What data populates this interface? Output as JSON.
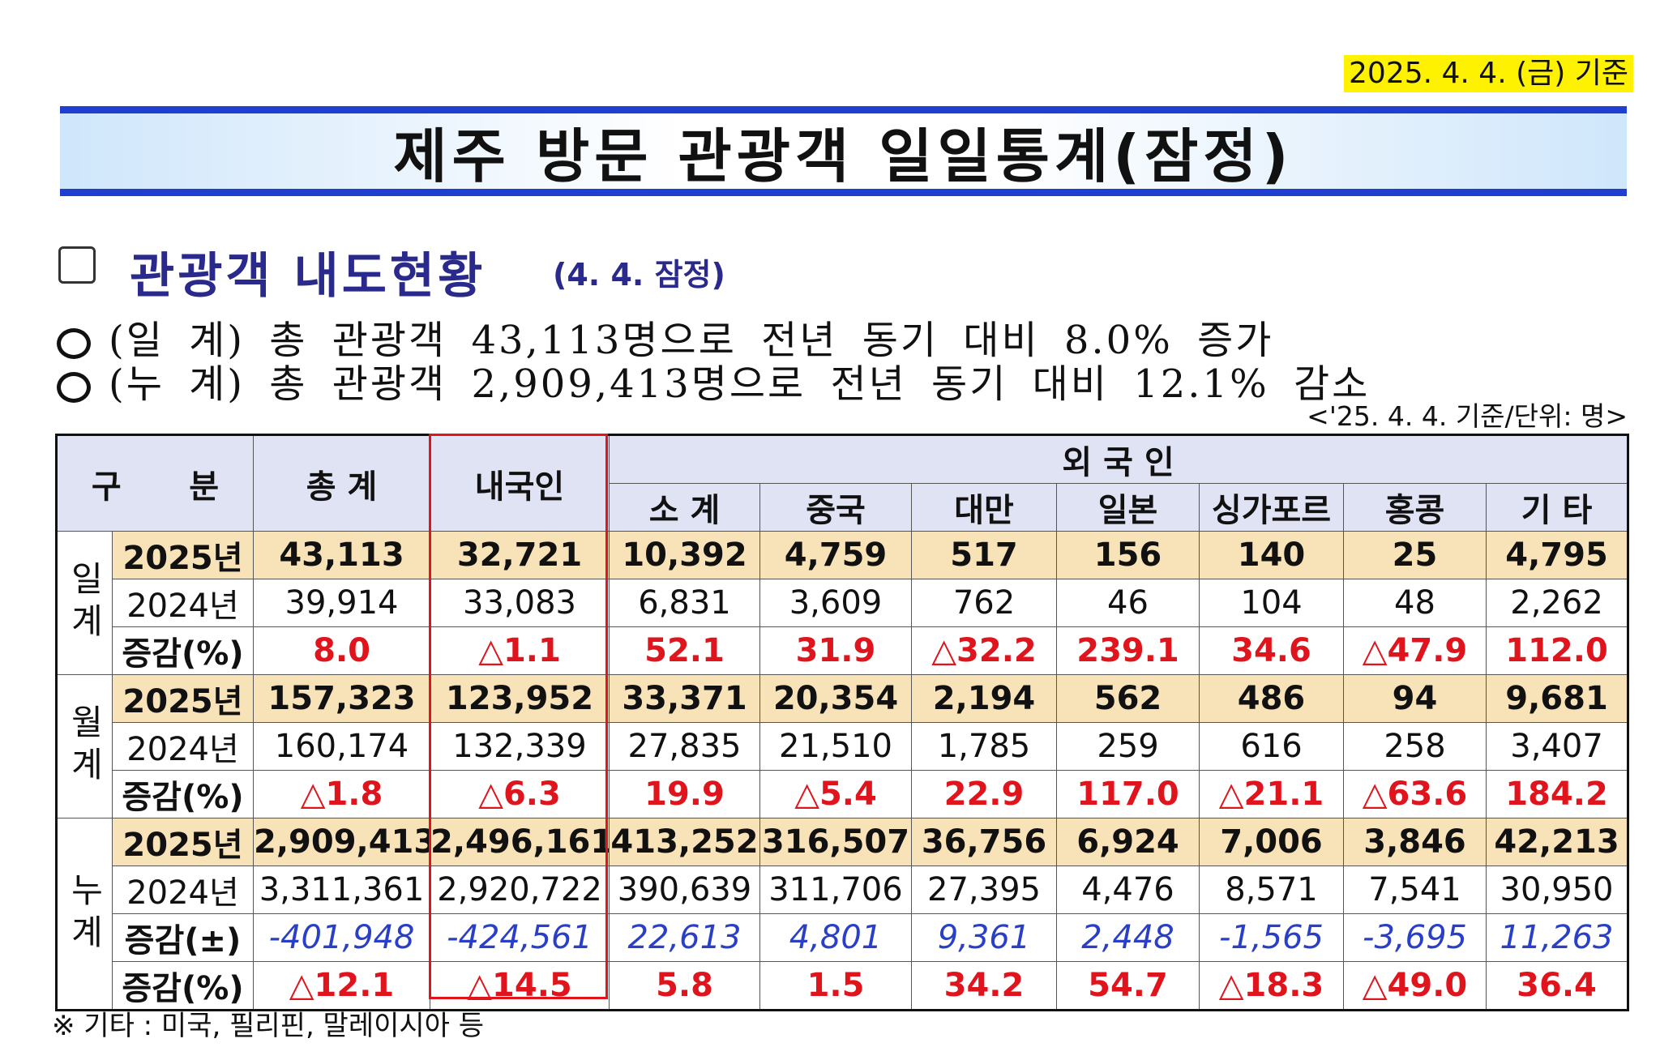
{
  "date_label": "2025. 4. 4. (금) 기준",
  "title": "제주 방문 관광객 일일통계(잠정)",
  "section": {
    "heading": "관광객 내도현황",
    "sub": "(4. 4. 잠정)"
  },
  "bullets": [
    "(일 계) 총 관광객 43,113명으로 전년 동기 대비 8.0% 증가",
    "(누 계) 총 관광객 2,909,413명으로 전년 동기 대비 12.1% 감소"
  ],
  "unit_note": "<'25. 4. 4. 기준/단위: 명>",
  "table": {
    "corner": "구      분",
    "total": "총 계",
    "domestic": "내국인",
    "foreign": "외 국 인",
    "foreign_columns": [
      "소 계",
      "중국",
      "대만",
      "일본",
      "싱가포르",
      "홍콩",
      "기 타"
    ],
    "groups": [
      {
        "name": "일계",
        "rows": [
          {
            "label": "2025년",
            "values": [
              "43,113",
              "32,721",
              "10,392",
              "4,759",
              "517",
              "156",
              "140",
              "25",
              "4,795"
            ]
          },
          {
            "label": "2024년",
            "values": [
              "39,914",
              "33,083",
              "6,831",
              "3,609",
              "762",
              "46",
              "104",
              "48",
              "2,262"
            ]
          },
          {
            "label": "증감(%)",
            "values": [
              "8.0",
              "△1.1",
              "52.1",
              "31.9",
              "△32.2",
              "239.1",
              "34.6",
              "△47.9",
              "112.0"
            ]
          }
        ]
      },
      {
        "name": "월계",
        "rows": [
          {
            "label": "2025년",
            "values": [
              "157,323",
              "123,952",
              "33,371",
              "20,354",
              "2,194",
              "562",
              "486",
              "94",
              "9,681"
            ]
          },
          {
            "label": "2024년",
            "values": [
              "160,174",
              "132,339",
              "27,835",
              "21,510",
              "1,785",
              "259",
              "616",
              "258",
              "3,407"
            ]
          },
          {
            "label": "증감(%)",
            "values": [
              "△1.8",
              "△6.3",
              "19.9",
              "△5.4",
              "22.9",
              "117.0",
              "△21.1",
              "△63.6",
              "184.2"
            ]
          }
        ]
      },
      {
        "name": "누계",
        "rows": [
          {
            "label": "2025년",
            "values": [
              "2,909,413",
              "2,496,161",
              "413,252",
              "316,507",
              "36,756",
              "6,924",
              "7,006",
              "3,846",
              "42,213"
            ]
          },
          {
            "label": "2024년",
            "values": [
              "3,311,361",
              "2,920,722",
              "390,639",
              "311,706",
              "27,395",
              "4,476",
              "8,571",
              "7,541",
              "30,950"
            ]
          },
          {
            "label": "증감(±)",
            "values": [
              "-401,948",
              "-424,561",
              "22,613",
              "4,801",
              "9,361",
              "2,448",
              "-1,565",
              "-3,695",
              "11,263"
            ]
          },
          {
            "label": "증감(%)",
            "values": [
              "△12.1",
              "△14.5",
              "5.8",
              "1.5",
              "34.2",
              "54.7",
              "△18.3",
              "△49.0",
              "36.4"
            ]
          }
        ]
      }
    ]
  },
  "footnote": "※ 기타 : 미국, 필리핀, 말레이시아 등"
}
